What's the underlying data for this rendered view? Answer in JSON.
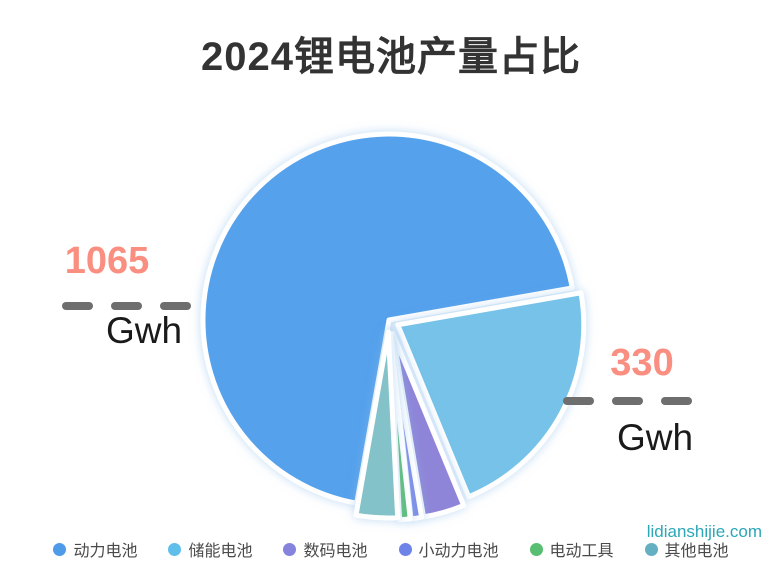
{
  "title": "2024锂电池产量占比",
  "watermark": "lidianshijie.com",
  "annotations": {
    "left": {
      "value": "1065",
      "unit": "Gwh"
    },
    "right": {
      "value": "330",
      "unit": "Gwh"
    }
  },
  "legend": {
    "items": [
      {
        "label": "动力电池",
        "color": "#4E9BEA"
      },
      {
        "label": "储能电池",
        "color": "#5FBFEA"
      },
      {
        "label": "数码电池",
        "color": "#8583DE"
      },
      {
        "label": "小动力电池",
        "color": "#6E83E8"
      },
      {
        "label": "电动工具",
        "color": "#57BE72"
      },
      {
        "label": "其他电池",
        "color": "#64AFC2"
      }
    ]
  },
  "chart_data": {
    "type": "pie",
    "title": "2024锂电池产量占比",
    "unit": "Gwh",
    "categories": [
      "动力电池",
      "储能电池",
      "数码电池",
      "小动力电池",
      "电动工具",
      "其他电池"
    ],
    "values": [
      1065,
      330,
      55,
      14,
      14,
      55
    ],
    "labeled_values": {
      "动力电池": 1065,
      "储能电池": 330
    },
    "colors": [
      "#55A1EC",
      "#76C2E8",
      "#8F85D8",
      "#7D8BE8",
      "#5FBE77",
      "#83C2C9"
    ],
    "slice_border_color": "#ffffff",
    "slice_border_width": 5,
    "start_angle": 260,
    "clockwise": true,
    "explode": [
      0,
      10,
      14,
      14,
      14,
      12
    ],
    "legend_position": "bottom",
    "annotation_color": "#FA8E80",
    "dash_color": "#6E6E6E"
  }
}
